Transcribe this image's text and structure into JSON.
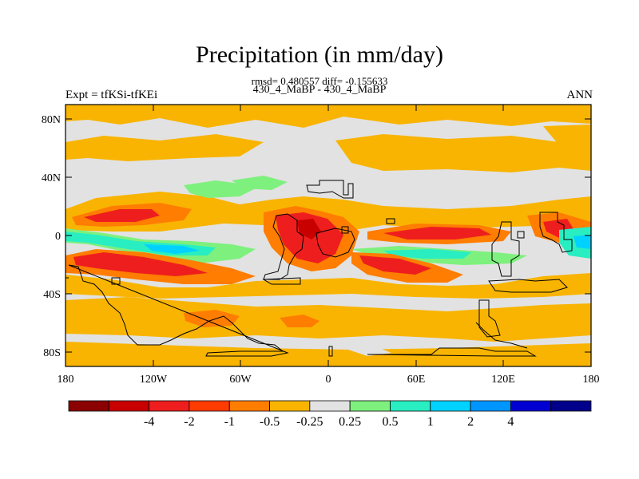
{
  "title": "Precipitation (in mm/day)",
  "stats_line": "rmsd= 0.480557 diff= -0.155633",
  "case_line": "430_4_MaBP - 430_4_MaBP",
  "expt_label": "Expt = tfKSi-tfKEi",
  "season_label": "ANN",
  "map": {
    "lat_ticks": [
      "80N",
      "40N",
      "0",
      "40S",
      "80S"
    ],
    "lon_ticks": [
      "180",
      "120W",
      "60W",
      "0",
      "60E",
      "120E",
      "180"
    ],
    "colors": {
      "n4": "#8b0000",
      "n3": "#c80000",
      "n2": "#ee1e1e",
      "n1": "#ff3c00",
      "n05": "#ff7d00",
      "n025": "#f8b400",
      "zero": "#e2e2e2",
      "p025": "#7ef07e",
      "p05": "#28eec2",
      "p1": "#00d2ff",
      "p2": "#0096ff",
      "p4": "#0000d2",
      "p5": "#00008a"
    }
  },
  "colorbar": {
    "colors": [
      "#8b0000",
      "#c80000",
      "#ee1e1e",
      "#ff3c00",
      "#ff7d00",
      "#f8b400",
      "#e2e2e2",
      "#7ef07e",
      "#28eec2",
      "#00d2ff",
      "#0096ff",
      "#0000d2",
      "#00008a"
    ],
    "labels": [
      "-4",
      "-2",
      "-1",
      "-0.5",
      "-0.25",
      "0.25",
      "0.5",
      "1",
      "2",
      "4"
    ]
  }
}
